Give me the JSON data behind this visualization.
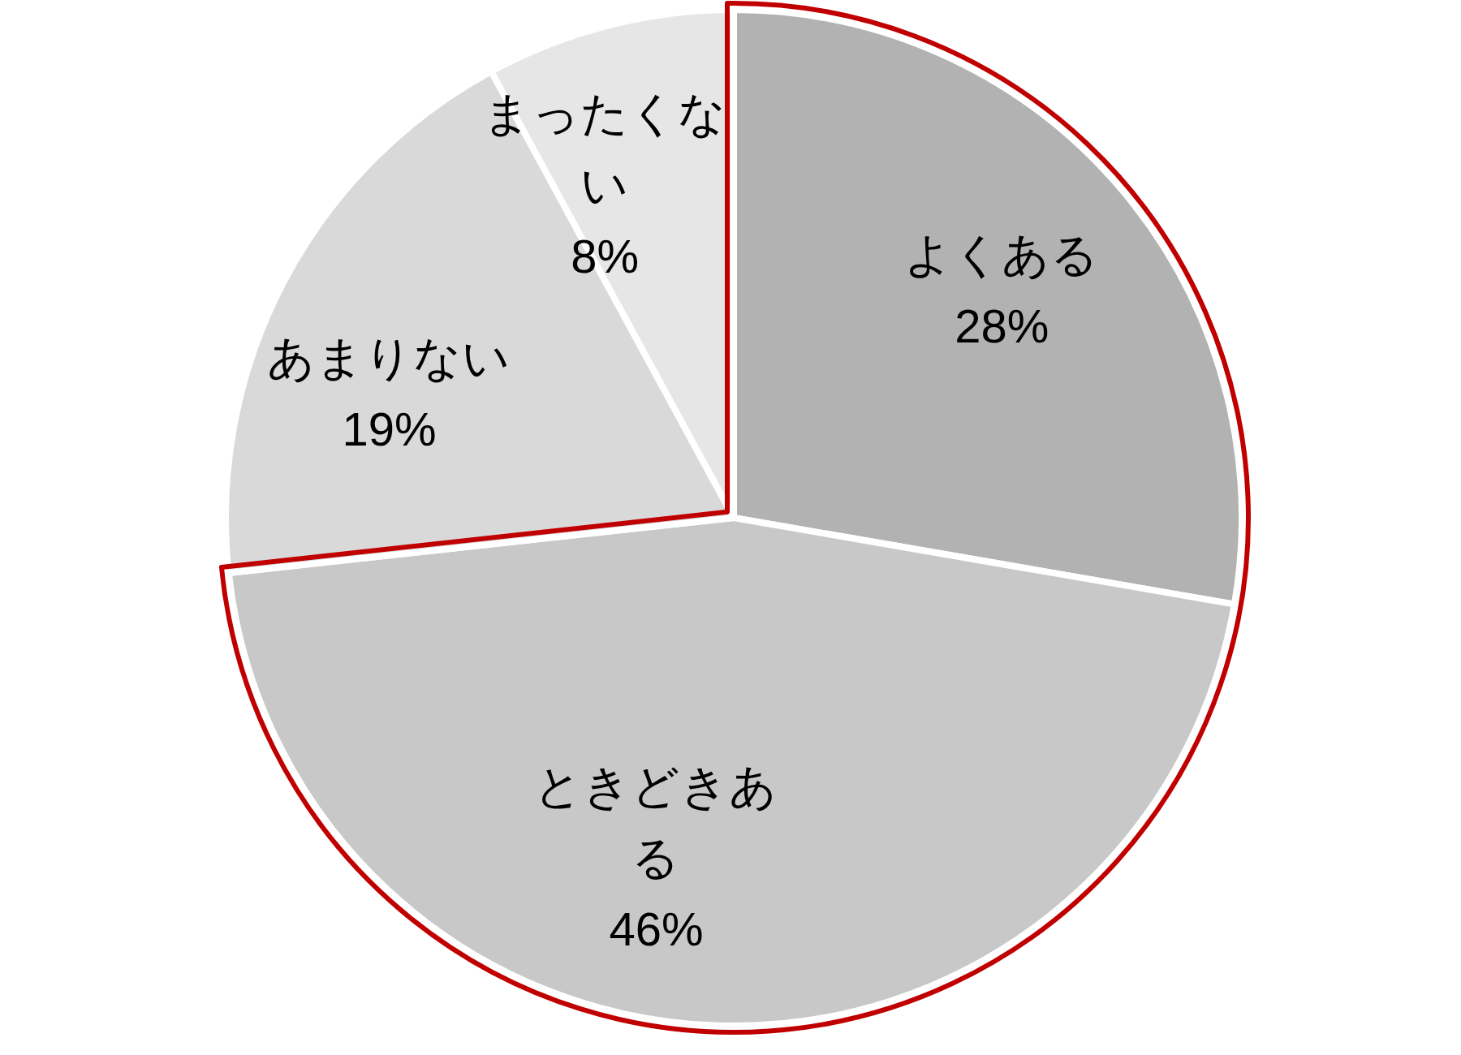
{
  "chart_data": {
    "type": "pie",
    "categories": [
      "よくある",
      "ときどきある",
      "あまりない",
      "まったくない"
    ],
    "values": [
      28,
      46,
      19,
      8
    ],
    "value_labels": [
      "28%",
      "46%",
      "19%",
      "8%"
    ],
    "colors": [
      "#b2b2b2",
      "#c8c8c8",
      "#d9d9d9",
      "#e6e6e6"
    ]
  }
}
